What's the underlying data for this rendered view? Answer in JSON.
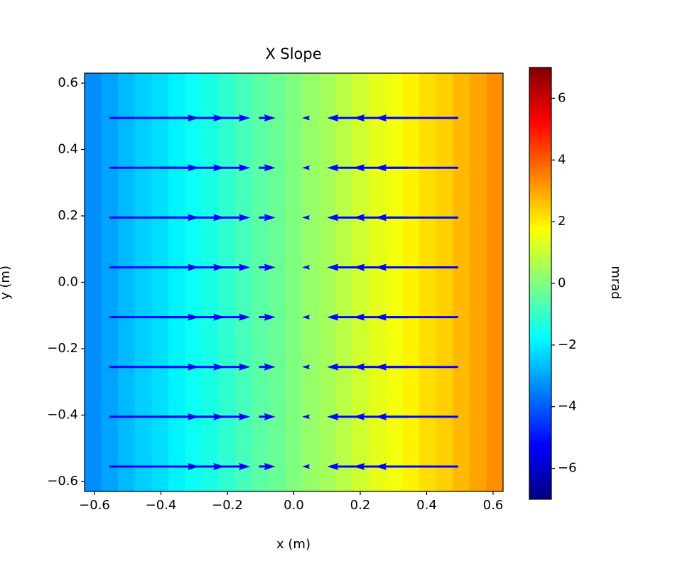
{
  "chart_data": {
    "type": "heatmap-quiver",
    "title": "X Slope",
    "xlabel": "x (m)",
    "ylabel": "y (m)",
    "colorbar_label": "mrad",
    "colormap": "jet",
    "clim": [
      -7,
      7
    ],
    "cticks": [
      {
        "value": -6,
        "label": "−6"
      },
      {
        "value": -4,
        "label": "−4"
      },
      {
        "value": -2,
        "label": "−2"
      },
      0,
      2,
      4,
      6
    ],
    "xlim": [
      -0.63,
      0.63
    ],
    "ylim": [
      -0.63,
      0.63
    ],
    "xticks": [
      {
        "value": -0.6,
        "label": "−0.6"
      },
      {
        "value": -0.4,
        "label": "−0.4"
      },
      {
        "value": -0.2,
        "label": "−0.2"
      },
      {
        "value": 0,
        "label": "0.0"
      },
      0.2,
      0.4,
      0.6
    ],
    "yticks": [
      {
        "value": -0.6,
        "label": "−0.6"
      },
      {
        "value": -0.4,
        "label": "−0.4"
      },
      {
        "value": -0.2,
        "label": "−0.2"
      },
      {
        "value": 0,
        "label": "0.0"
      },
      0.2,
      0.4,
      0.6
    ],
    "x_edges": [
      -0.63,
      -0.5796,
      -0.5292,
      -0.4788,
      -0.4284,
      -0.378,
      -0.3276,
      -0.2772,
      -0.2268,
      -0.1764,
      -0.126,
      -0.0756,
      -0.0252,
      0.0252,
      0.0756,
      0.126,
      0.1764,
      0.2268,
      0.2772,
      0.3276,
      0.378,
      0.4284,
      0.4788,
      0.5292,
      0.5796,
      0.63
    ],
    "values": [
      -3.3,
      -3.0,
      -2.7,
      -2.4,
      -2.2,
      -1.9,
      -1.6,
      -1.4,
      -1.1,
      -0.8,
      -0.5,
      -0.3,
      0,
      0.3,
      0.5,
      0.8,
      1.1,
      1.4,
      1.6,
      1.9,
      2.2,
      2.4,
      2.7,
      3.0,
      3.3
    ],
    "quiver": {
      "color": "#0000ff",
      "x": [
        -0.555,
        -0.405,
        -0.255,
        -0.105,
        0.045,
        0.195,
        0.345,
        0.495
      ],
      "y": [
        -0.555,
        -0.405,
        -0.255,
        -0.105,
        0.045,
        0.195,
        0.345,
        0.495
      ],
      "u": [
        0.27,
        0.197,
        0.124,
        0.05,
        -0.02,
        -0.095,
        -0.166,
        -0.25
      ]
    }
  }
}
